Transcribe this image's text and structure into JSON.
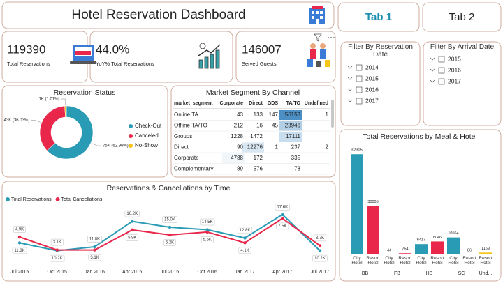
{
  "header": {
    "title": "Hotel Reservation Dashboard"
  },
  "tabs": [
    "Tab 1",
    "Tab 2"
  ],
  "kpis": [
    {
      "value": 119390,
      "label": "Total Reservations"
    },
    {
      "value": "44.0%",
      "label": "YoY% Total Reservations"
    },
    {
      "value": 146007,
      "label": "Served Guests"
    }
  ],
  "filters": [
    {
      "title": "Filter By Reservation Date",
      "items": [
        "2014",
        "2015",
        "2016",
        "2017"
      ]
    },
    {
      "title": "Filter By Arrival Date",
      "items": [
        "2015",
        "2016",
        "2017"
      ]
    }
  ],
  "table": {
    "title": "Market Segment By Channel",
    "columns": [
      "market_segment",
      "Corporate",
      "Direct",
      "GDS",
      "TA/TO",
      "Undefined"
    ],
    "rows": [
      [
        "Online TA",
        43,
        133,
        147,
        56153,
        1
      ],
      [
        "Offline TA/TO",
        212,
        16,
        45,
        23946,
        null
      ],
      [
        "Groups",
        1228,
        1472,
        null,
        17111,
        null
      ],
      [
        "Direct",
        90,
        12276,
        1,
        237,
        2
      ],
      [
        "Corporate",
        4788,
        172,
        null,
        335,
        null
      ],
      [
        "Complementary",
        89,
        576,
        null,
        78,
        null
      ]
    ]
  },
  "chart_data": [
    {
      "type": "pie",
      "title": "Reservation Status",
      "donut": true,
      "legend": "right",
      "categories": [
        "Check-Out",
        "Canceled",
        "No-Show"
      ],
      "values": [
        62.96,
        36.03,
        1.01
      ],
      "value_labels": [
        "75K (62.96%)",
        "43K (36.03%)",
        "1K (1.01%)"
      ],
      "colors": [
        "#2a9bb5",
        "#e8274b",
        "#f5c518"
      ]
    },
    {
      "type": "line",
      "title": "Reservations & Cancellations by Time",
      "legend": "top-left",
      "x": [
        "Jul 2015",
        "Oct 2015",
        "Jan 2016",
        "Apr 2016",
        "Jul 2016",
        "Oct 2016",
        "Jan 2017",
        "Apr 2017",
        "Jul 2017"
      ],
      "series": [
        {
          "name": "Total Reservations",
          "color": "#2a9bb5",
          "values": [
            11800,
            10200,
            11000,
            16200,
            15000,
            14500,
            12800,
            17600,
            10200
          ],
          "value_labels": [
            "11.8K",
            "10.2K",
            "11.0K",
            "16.2K",
            "15.0K",
            "14.5K",
            "12.8K",
            "17.6K",
            "10.2K"
          ]
        },
        {
          "name": "Total Cancellations",
          "color": "#e8274b",
          "axis": "y2",
          "values": [
            4900,
            3100,
            3100,
            5900,
            5200,
            5600,
            4100,
            7500,
            3700
          ],
          "value_labels": [
            "4.9K",
            "3.1K",
            "3.1K",
            "5.9K",
            "5.2K",
            "5.6K",
            "4.1K",
            "7.5K",
            "3.7K"
          ]
        }
      ],
      "ylim": [
        8000,
        19000
      ],
      "y2lim": [
        1500,
        9000
      ]
    },
    {
      "type": "bar",
      "title": "Total Reservations by Meal & Hotel",
      "ylim": [
        0,
        65000
      ],
      "groups": [
        {
          "name": "BB",
          "categories": [
            "City Hotel",
            "Resort Hotel"
          ],
          "values": [
            62305,
            30005
          ],
          "colors": [
            "#2a9bb5",
            "#e8274b"
          ]
        },
        {
          "name": "FB",
          "categories": [
            "City Hotel",
            "Resort Hotel"
          ],
          "values": [
            44,
            754
          ],
          "colors": [
            "#2a9bb5",
            "#e8274b"
          ]
        },
        {
          "name": "HB",
          "categories": [
            "City Hotel",
            "Resort Hotel"
          ],
          "values": [
            6417,
            8046
          ],
          "colors": [
            "#2a9bb5",
            "#e8274b"
          ]
        },
        {
          "name": "SC",
          "categories": [
            "City Hotel",
            "Resort Hotel"
          ],
          "values": [
            10564,
            86
          ],
          "colors": [
            "#2a9bb5",
            "#e8274b"
          ]
        },
        {
          "name": "Und...",
          "categories": [
            "Resort Hotel"
          ],
          "values": [
            1169
          ],
          "colors": [
            "#f5c518"
          ]
        }
      ]
    }
  ]
}
